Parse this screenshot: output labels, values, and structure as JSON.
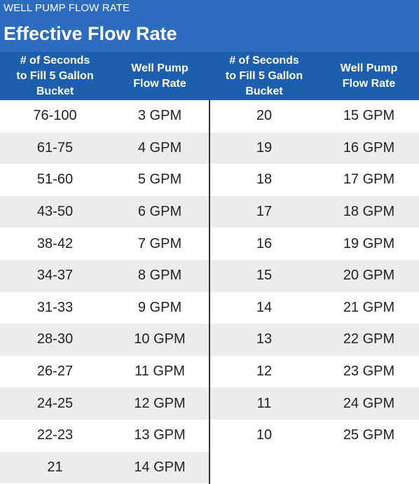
{
  "header": {
    "kicker": "WELL PUMP FLOW RATE",
    "title": "Effective Flow Rate"
  },
  "columns": [
    "# of Seconds\nto Fill 5 Gallon\nBucket",
    "Well Pump\nFlow Rate",
    "# of Seconds\nto Fill 5 Gallon\nBucket",
    "Well Pump\nFlow Rate"
  ],
  "rows": [
    {
      "left_seconds": "76-100",
      "left_rate": "3 GPM",
      "right_seconds": "20",
      "right_rate": "15 GPM"
    },
    {
      "left_seconds": "61-75",
      "left_rate": "4 GPM",
      "right_seconds": "19",
      "right_rate": "16 GPM"
    },
    {
      "left_seconds": "51-60",
      "left_rate": "5 GPM",
      "right_seconds": "18",
      "right_rate": "17 GPM"
    },
    {
      "left_seconds": "43-50",
      "left_rate": "6 GPM",
      "right_seconds": "17",
      "right_rate": "18 GPM"
    },
    {
      "left_seconds": "38-42",
      "left_rate": "7 GPM",
      "right_seconds": "16",
      "right_rate": "19 GPM"
    },
    {
      "left_seconds": "34-37",
      "left_rate": "8 GPM",
      "right_seconds": "15",
      "right_rate": "20 GPM"
    },
    {
      "left_seconds": "31-33",
      "left_rate": "9 GPM",
      "right_seconds": "14",
      "right_rate": "21 GPM"
    },
    {
      "left_seconds": "28-30",
      "left_rate": "10 GPM",
      "right_seconds": "13",
      "right_rate": "22 GPM"
    },
    {
      "left_seconds": "26-27",
      "left_rate": "11 GPM",
      "right_seconds": "12",
      "right_rate": "23 GPM"
    },
    {
      "left_seconds": "24-25",
      "left_rate": "12 GPM",
      "right_seconds": "11",
      "right_rate": "24 GPM"
    },
    {
      "left_seconds": "22-23",
      "left_rate": "13 GPM",
      "right_seconds": "10",
      "right_rate": "25 GPM"
    },
    {
      "left_seconds": "21",
      "left_rate": "14 GPM",
      "right_seconds": "",
      "right_rate": ""
    }
  ],
  "colors": {
    "title_bar": "#2e6cc0",
    "header_row": "#1d5fad",
    "stripe": "#ececec",
    "divider": "#333333"
  }
}
